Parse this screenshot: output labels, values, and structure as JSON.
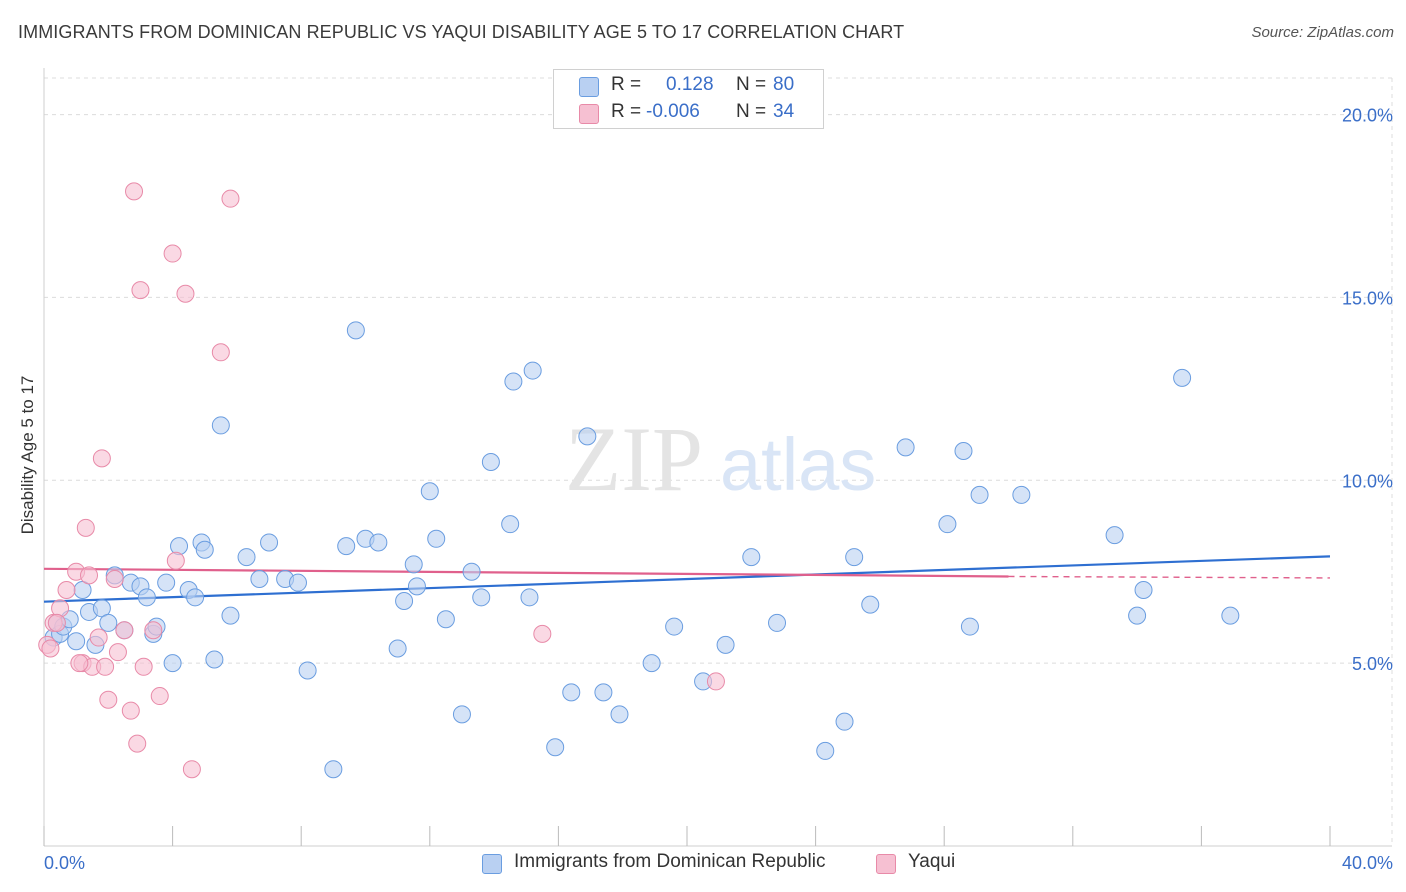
{
  "chart_data": {
    "type": "scatter",
    "title": "IMMIGRANTS FROM DOMINICAN REPUBLIC VS YAQUI DISABILITY AGE 5 TO 17 CORRELATION CHART",
    "source": "Source: ZipAtlas.com",
    "ylabel": "Disability Age 5 to 17",
    "xlabel": "",
    "xlim": [
      0,
      40
    ],
    "ylim": [
      0,
      21
    ],
    "x_tick_labels": [
      "0.0%",
      "40.0%"
    ],
    "y_tick_labels": [
      "5.0%",
      "10.0%",
      "15.0%",
      "20.0%"
    ],
    "y_ticks": [
      5,
      10,
      15,
      20
    ],
    "watermark": "ZIPatlas",
    "legend": {
      "rows": [
        {
          "r_label": "R =",
          "r_value": "0.128",
          "n_label": "N =",
          "n_value": "80"
        },
        {
          "r_label": "R =",
          "r_value": "-0.006",
          "n_label": "N =",
          "n_value": "34"
        }
      ]
    },
    "series": [
      {
        "name": "Immigrants from Dominican Republic",
        "color": "#6a9de0",
        "fill": "#b9d0f2",
        "line_color": "#2e6fd1",
        "trend": {
          "x0": 0,
          "y0": 6.68,
          "x1": 40,
          "y1": 7.92
        },
        "points": [
          [
            0.3,
            5.7
          ],
          [
            0.4,
            6.1
          ],
          [
            0.5,
            5.8
          ],
          [
            0.6,
            6.0
          ],
          [
            0.8,
            6.2
          ],
          [
            1.0,
            5.6
          ],
          [
            1.2,
            7.0
          ],
          [
            1.4,
            6.4
          ],
          [
            1.6,
            5.5
          ],
          [
            1.8,
            6.5
          ],
          [
            2.0,
            6.1
          ],
          [
            2.2,
            7.4
          ],
          [
            2.5,
            5.9
          ],
          [
            2.7,
            7.2
          ],
          [
            3.0,
            7.1
          ],
          [
            3.2,
            6.8
          ],
          [
            3.4,
            5.8
          ],
          [
            3.5,
            6.0
          ],
          [
            3.8,
            7.2
          ],
          [
            4.0,
            5.0
          ],
          [
            4.2,
            8.2
          ],
          [
            4.5,
            7.0
          ],
          [
            4.7,
            6.8
          ],
          [
            4.9,
            8.3
          ],
          [
            5.0,
            8.1
          ],
          [
            5.3,
            5.1
          ],
          [
            5.5,
            11.5
          ],
          [
            5.8,
            6.3
          ],
          [
            6.3,
            7.9
          ],
          [
            6.7,
            7.3
          ],
          [
            7.0,
            8.3
          ],
          [
            7.5,
            7.3
          ],
          [
            7.9,
            7.2
          ],
          [
            8.2,
            4.8
          ],
          [
            9.0,
            2.1
          ],
          [
            9.4,
            8.2
          ],
          [
            9.7,
            14.1
          ],
          [
            10.0,
            8.4
          ],
          [
            10.4,
            8.3
          ],
          [
            11.0,
            5.4
          ],
          [
            11.2,
            6.7
          ],
          [
            11.5,
            7.7
          ],
          [
            11.6,
            7.1
          ],
          [
            12.0,
            9.7
          ],
          [
            12.2,
            8.4
          ],
          [
            12.5,
            6.2
          ],
          [
            13.0,
            3.6
          ],
          [
            13.3,
            7.5
          ],
          [
            13.6,
            6.8
          ],
          [
            13.9,
            10.5
          ],
          [
            14.5,
            8.8
          ],
          [
            14.6,
            12.7
          ],
          [
            15.1,
            6.8
          ],
          [
            15.2,
            13.0
          ],
          [
            15.9,
            2.7
          ],
          [
            16.4,
            4.2
          ],
          [
            16.9,
            11.2
          ],
          [
            17.4,
            4.2
          ],
          [
            17.9,
            3.6
          ],
          [
            18.9,
            5.0
          ],
          [
            19.6,
            6.0
          ],
          [
            20.5,
            4.5
          ],
          [
            21.2,
            5.5
          ],
          [
            22.0,
            7.9
          ],
          [
            22.8,
            6.1
          ],
          [
            24.3,
            2.6
          ],
          [
            24.9,
            3.4
          ],
          [
            25.2,
            7.9
          ],
          [
            25.7,
            6.6
          ],
          [
            26.8,
            10.9
          ],
          [
            28.1,
            8.8
          ],
          [
            28.6,
            10.8
          ],
          [
            28.8,
            6.0
          ],
          [
            29.1,
            9.6
          ],
          [
            30.4,
            9.6
          ],
          [
            33.3,
            8.5
          ],
          [
            34.0,
            6.3
          ],
          [
            34.2,
            7.0
          ],
          [
            35.4,
            12.8
          ],
          [
            36.9,
            6.3
          ]
        ]
      },
      {
        "name": "Yaqui",
        "color": "#e88aa8",
        "fill": "#f6c0d2",
        "line_color": "#e0608c",
        "trend": {
          "x0": 0,
          "y0": 7.58,
          "x1": 30,
          "y1": 7.37,
          "x2": 40,
          "y2": 7.33
        },
        "points": [
          [
            0.1,
            5.5
          ],
          [
            0.2,
            5.4
          ],
          [
            0.3,
            6.1
          ],
          [
            0.5,
            6.5
          ],
          [
            0.7,
            7.0
          ],
          [
            1.0,
            7.5
          ],
          [
            1.2,
            5.0
          ],
          [
            1.3,
            8.7
          ],
          [
            1.4,
            7.4
          ],
          [
            1.5,
            4.9
          ],
          [
            1.7,
            5.7
          ],
          [
            1.8,
            10.6
          ],
          [
            1.9,
            4.9
          ],
          [
            2.0,
            4.0
          ],
          [
            2.2,
            7.3
          ],
          [
            2.3,
            5.3
          ],
          [
            2.5,
            5.9
          ],
          [
            2.7,
            3.7
          ],
          [
            2.8,
            17.9
          ],
          [
            2.9,
            2.8
          ],
          [
            3.0,
            15.2
          ],
          [
            3.1,
            4.9
          ],
          [
            3.4,
            5.9
          ],
          [
            3.6,
            4.1
          ],
          [
            4.0,
            16.2
          ],
          [
            4.1,
            7.8
          ],
          [
            4.4,
            15.1
          ],
          [
            4.6,
            2.1
          ],
          [
            5.5,
            13.5
          ],
          [
            5.8,
            17.7
          ],
          [
            15.5,
            5.8
          ],
          [
            20.9,
            4.5
          ],
          [
            0.4,
            6.1
          ],
          [
            1.1,
            5.0
          ]
        ]
      }
    ]
  },
  "bottom_legend": {
    "series1": "Immigrants from Dominican Republic",
    "series2": "Yaqui"
  }
}
